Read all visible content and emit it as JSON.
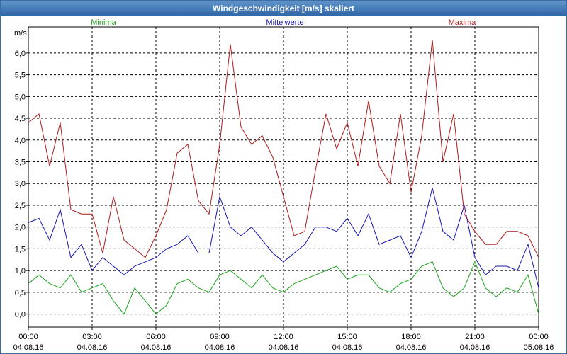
{
  "window": {
    "title": "Windgeschwindigkeit [m/s] skaliert"
  },
  "chart_data": {
    "type": "line",
    "title": "Windgeschwindigkeit [m/s] skaliert",
    "ylabel": "m/s",
    "xlabel": "",
    "ylim": [
      -0.3,
      6.6
    ],
    "xlim": [
      0,
      24
    ],
    "grid": true,
    "yticks": [
      0.0,
      0.5,
      1.0,
      1.5,
      2.0,
      2.5,
      3.0,
      3.5,
      4.0,
      4.5,
      5.0,
      5.5,
      6.0
    ],
    "ytick_labels": [
      "0,0",
      "0,5",
      "1,0",
      "1,5",
      "2,0",
      "2,5",
      "3,0",
      "3,5",
      "4,0",
      "4,5",
      "5,0",
      "5,5",
      "6,0"
    ],
    "xticks": [
      0,
      3,
      6,
      9,
      12,
      15,
      18,
      21,
      24
    ],
    "xtick_labels": [
      {
        "time": "00:00",
        "date": "04.08.16"
      },
      {
        "time": "03:00",
        "date": "04.08.16"
      },
      {
        "time": "06:00",
        "date": "04.08.16"
      },
      {
        "time": "09:00",
        "date": "04.08.16"
      },
      {
        "time": "12:00",
        "date": "04.08.16"
      },
      {
        "time": "15:00",
        "date": "04.08.16"
      },
      {
        "time": "18:00",
        "date": "04.08.16"
      },
      {
        "time": "21:00",
        "date": "04.08.16"
      },
      {
        "time": "00:00",
        "date": "05.08.16"
      }
    ],
    "x_hours": [
      0,
      0.5,
      1,
      1.5,
      2,
      2.5,
      3,
      3.5,
      4,
      4.5,
      5,
      5.5,
      6,
      6.5,
      7,
      7.5,
      8,
      8.5,
      9,
      9.5,
      10,
      10.5,
      11,
      11.5,
      12,
      12.5,
      13,
      13.5,
      14,
      14.5,
      15,
      15.5,
      16,
      16.5,
      17,
      17.5,
      18,
      18.5,
      19,
      19.5,
      20,
      20.5,
      21,
      21.5,
      22,
      22.5,
      23,
      23.5,
      24
    ],
    "series": [
      {
        "name": "Minima",
        "color": "#1aa31a",
        "values": [
          0.7,
          0.9,
          0.7,
          0.6,
          0.9,
          0.5,
          0.6,
          0.7,
          0.3,
          0.0,
          0.6,
          0.3,
          0.0,
          0.2,
          0.7,
          0.8,
          0.6,
          0.5,
          0.9,
          1.0,
          0.8,
          0.6,
          0.9,
          0.6,
          0.5,
          0.7,
          0.8,
          0.9,
          1.0,
          1.1,
          0.8,
          0.9,
          0.9,
          0.6,
          0.5,
          0.7,
          0.8,
          1.1,
          1.2,
          0.6,
          0.4,
          0.6,
          1.2,
          0.6,
          0.4,
          0.6,
          0.5,
          0.9,
          0.0
        ]
      },
      {
        "name": "Mittelwerte",
        "color": "#1414b4",
        "values": [
          2.1,
          2.2,
          1.7,
          2.4,
          1.3,
          1.6,
          1.0,
          1.3,
          1.1,
          0.9,
          1.1,
          1.2,
          1.3,
          1.5,
          1.6,
          1.8,
          1.4,
          1.4,
          2.7,
          2.0,
          1.8,
          2.0,
          1.7,
          1.4,
          1.2,
          1.4,
          1.6,
          2.0,
          2.0,
          1.9,
          2.2,
          1.8,
          2.3,
          1.6,
          1.7,
          1.8,
          1.3,
          1.9,
          2.9,
          1.9,
          1.7,
          2.5,
          1.3,
          0.9,
          1.1,
          1.1,
          1.0,
          1.6,
          0.6
        ]
      },
      {
        "name": "Maxima",
        "color": "#b21818",
        "values": [
          4.4,
          4.6,
          3.4,
          4.4,
          2.4,
          2.3,
          2.3,
          1.4,
          2.7,
          1.7,
          1.5,
          1.3,
          1.8,
          2.4,
          3.7,
          3.9,
          2.6,
          2.3,
          3.9,
          6.2,
          4.3,
          3.9,
          4.1,
          3.6,
          2.7,
          1.8,
          1.9,
          3.3,
          4.6,
          3.8,
          4.4,
          3.4,
          4.9,
          3.4,
          3.0,
          4.6,
          2.8,
          4.1,
          6.3,
          3.5,
          4.6,
          2.3,
          1.9,
          1.6,
          1.6,
          1.9,
          1.9,
          1.8,
          1.3
        ]
      }
    ],
    "legend": [
      {
        "name": "Minima",
        "color": "#1aa31a",
        "position": "top-left"
      },
      {
        "name": "Mittelwerte",
        "color": "#1414b4",
        "position": "top-center"
      },
      {
        "name": "Maxima",
        "color": "#b21818",
        "position": "top-right"
      }
    ]
  }
}
